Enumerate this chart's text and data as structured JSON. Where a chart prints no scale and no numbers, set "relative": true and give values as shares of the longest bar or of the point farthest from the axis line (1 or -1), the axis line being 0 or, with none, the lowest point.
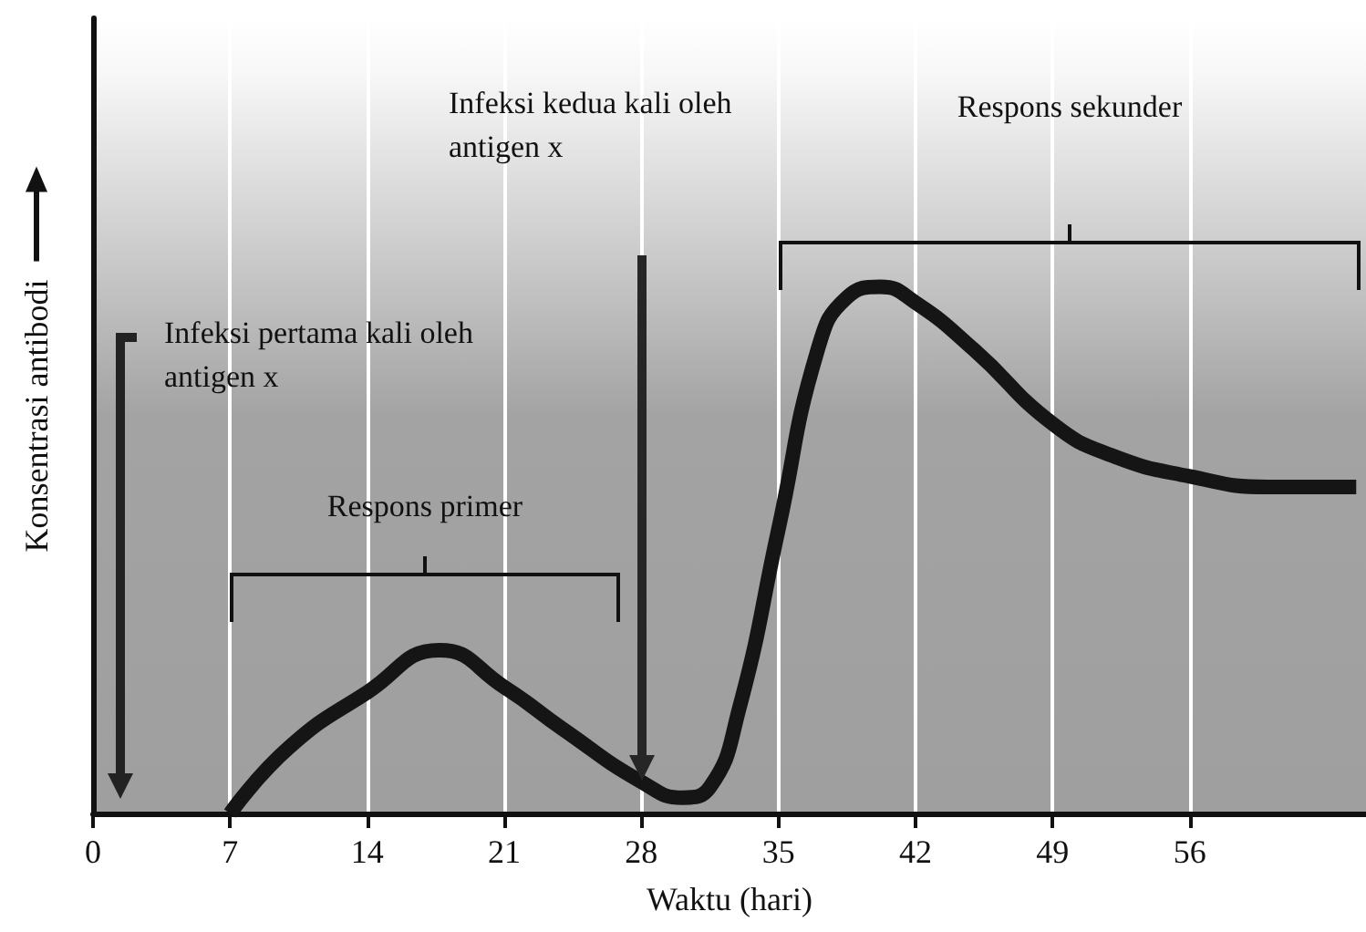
{
  "chart_data": {
    "type": "line",
    "xlabel": "Waktu (hari)",
    "ylabel": "Konsentrasi antibodi",
    "relative": true,
    "x": [
      7,
      10,
      14,
      17.7,
      21,
      24,
      28,
      30.1,
      31.5,
      33,
      35,
      37,
      38.5,
      40.2,
      42,
      45,
      49,
      52,
      56,
      60,
      64.5
    ],
    "series": [
      {
        "color": "#151515",
        "values": [
          0,
          0.125,
          0.23,
          0.31,
          0.24,
          0.16,
          0.06,
          0.03,
          0.05,
          0.2,
          0.54,
          0.88,
          0.98,
          1,
          0.97,
          0.88,
          0.74,
          0.68,
          0.64,
          0.62,
          0.62
        ]
      }
    ],
    "xlim": [
      0,
      65
    ],
    "xticks": [
      0,
      7,
      14,
      21,
      28,
      35,
      42,
      49,
      56
    ],
    "grid": "x",
    "marker": "none",
    "line_style": "solid",
    "annotations": [
      "Infeksi pertama kali oleh antigen x",
      "Infeksi kedua kali oleh antigen x",
      "Respons primer",
      "Respons sekunder"
    ]
  }
}
